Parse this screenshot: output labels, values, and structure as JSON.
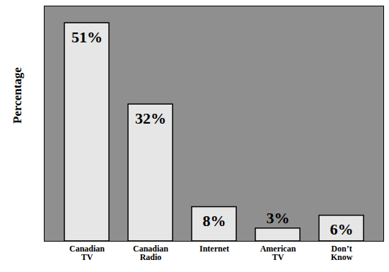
{
  "chart_data": {
    "type": "bar",
    "y_label": "Percentage",
    "categories": [
      "Canadian TV",
      "Canadian Radio",
      "Internet",
      "American TV",
      "Don’t Know"
    ],
    "values": [
      51,
      32,
      8,
      3,
      6
    ],
    "value_labels": [
      "51%",
      "32%",
      "8%",
      "3%",
      "6%"
    ],
    "color": "#f0f0f0",
    "ylim": [
      0,
      55
    ],
    "yticks": [],
    "grid": false,
    "data_labels": true,
    "tick_labels": "x"
  }
}
